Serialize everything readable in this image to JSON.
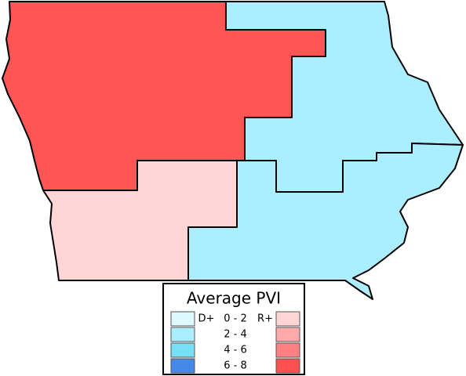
{
  "map": {
    "districts": [
      {
        "color": "#ff5555"
      },
      {
        "color": "#ffd6d6"
      },
      {
        "color": "#aaeeff"
      },
      {
        "color": "#aaeeff"
      }
    ],
    "legend": {
      "title": "Average PVI",
      "dem_prefix": "D+",
      "rep_prefix": "R+",
      "rows": [
        {
          "range": "0 - 2",
          "dem_color": "#ddf8ff",
          "rep_color": "#ffd6d6"
        },
        {
          "range": "2 - 4",
          "dem_color": "#aaeeff",
          "rep_color": "#ffaaaa"
        },
        {
          "range": "4 - 6",
          "dem_color": "#77e0f8",
          "rep_color": "#ff8080"
        },
        {
          "range": "6 - 8",
          "dem_color": "#4488e8",
          "rep_color": "#ff5050"
        }
      ]
    }
  }
}
